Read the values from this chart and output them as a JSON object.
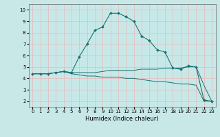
{
  "xlabel": "Humidex (Indice chaleur)",
  "ylabel": "",
  "xlim": [
    -0.5,
    23.5
  ],
  "ylim": [
    1.5,
    10.5
  ],
  "xticks": [
    0,
    1,
    2,
    3,
    4,
    5,
    6,
    7,
    8,
    9,
    10,
    11,
    12,
    13,
    14,
    15,
    16,
    17,
    18,
    19,
    20,
    21,
    22,
    23
  ],
  "yticks": [
    2,
    3,
    4,
    5,
    6,
    7,
    8,
    9,
    10
  ],
  "background_color": "#c8e8e8",
  "grid_color": "#e8b8b8",
  "line_color": "#1a7070",
  "line1_x": [
    0,
    1,
    2,
    3,
    4,
    5,
    6,
    7,
    8,
    9,
    10,
    11,
    12,
    13,
    14,
    15,
    16,
    17,
    18,
    19,
    20,
    21,
    22,
    23
  ],
  "line1_y": [
    4.4,
    4.4,
    4.4,
    4.5,
    4.6,
    4.5,
    5.9,
    7.0,
    8.2,
    8.5,
    9.7,
    9.7,
    9.4,
    9.0,
    7.7,
    7.3,
    6.5,
    6.3,
    4.9,
    4.8,
    5.1,
    5.0,
    2.1,
    2.0
  ],
  "line2_x": [
    0,
    1,
    2,
    3,
    4,
    5,
    6,
    7,
    8,
    9,
    10,
    11,
    12,
    13,
    14,
    15,
    16,
    17,
    18,
    19,
    20,
    21,
    22,
    23
  ],
  "line2_y": [
    4.4,
    4.4,
    4.4,
    4.5,
    4.6,
    4.4,
    4.3,
    4.2,
    4.2,
    4.1,
    4.1,
    4.1,
    4.0,
    4.0,
    3.9,
    3.8,
    3.7,
    3.7,
    3.6,
    3.5,
    3.5,
    3.4,
    2.0,
    2.0
  ],
  "line3_x": [
    0,
    1,
    2,
    3,
    4,
    5,
    6,
    7,
    8,
    9,
    10,
    11,
    12,
    13,
    14,
    15,
    16,
    17,
    18,
    19,
    20,
    21,
    22,
    23
  ],
  "line3_y": [
    4.4,
    4.4,
    4.4,
    4.5,
    4.6,
    4.5,
    4.5,
    4.5,
    4.5,
    4.6,
    4.7,
    4.7,
    4.7,
    4.7,
    4.8,
    4.8,
    4.8,
    4.9,
    4.9,
    4.9,
    5.0,
    5.0,
    3.4,
    2.0
  ],
  "tick_fontsize": 5,
  "xlabel_fontsize": 6
}
